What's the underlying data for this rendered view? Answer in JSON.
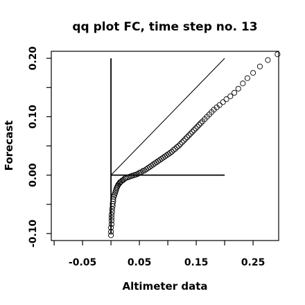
{
  "chart_data": {
    "type": "scatter",
    "title": "qq plot FC, time step no. 13",
    "xlabel": "Altimeter data",
    "ylabel": "Forecast",
    "xlim": [
      -0.105,
      0.295
    ],
    "ylim": [
      -0.112,
      0.212
    ],
    "x_ticks": [
      -0.05,
      0.05,
      0.15,
      0.25
    ],
    "x_tick_labels": [
      "-0.05",
      "0.05",
      "0.15",
      "0.25"
    ],
    "x_minor_ticks": [
      -0.1,
      0.0,
      0.1,
      0.2
    ],
    "y_ticks": [
      -0.1,
      0.0,
      0.1,
      0.2
    ],
    "y_tick_labels": [
      "-0.10",
      "0.00",
      "0.10",
      "0.20"
    ],
    "y_minor_ticks": [
      -0.05,
      0.05,
      0.15
    ],
    "reference_lines": [
      {
        "x": [
          0.0,
          0.2
        ],
        "y": [
          0.0,
          0.2
        ]
      },
      {
        "x": [
          0.0,
          0.0
        ],
        "y": [
          -0.1,
          0.2
        ]
      },
      {
        "x": [
          0.0,
          0.2
        ],
        "y": [
          0.0,
          0.0
        ]
      }
    ],
    "marker": "open-circle",
    "point_color": "#000000",
    "grid": false,
    "series": [
      {
        "points": [
          [
            0.0,
            -0.103
          ],
          [
            0.0,
            -0.097
          ],
          [
            0.0,
            -0.09
          ],
          [
            0.001,
            -0.084
          ],
          [
            0.001,
            -0.078
          ],
          [
            0.001,
            -0.073
          ],
          [
            0.001,
            -0.068
          ],
          [
            0.002,
            -0.063
          ],
          [
            0.002,
            -0.058
          ],
          [
            0.003,
            -0.053
          ],
          [
            0.003,
            -0.049
          ],
          [
            0.004,
            -0.045
          ],
          [
            0.004,
            -0.041
          ],
          [
            0.005,
            -0.037
          ],
          [
            0.006,
            -0.034
          ],
          [
            0.007,
            -0.031
          ],
          [
            0.008,
            -0.028
          ],
          [
            0.009,
            -0.025
          ],
          [
            0.01,
            -0.022
          ],
          [
            0.011,
            -0.02
          ],
          [
            0.012,
            -0.018
          ],
          [
            0.013,
            -0.016
          ],
          [
            0.015,
            -0.014
          ],
          [
            0.016,
            -0.012
          ],
          [
            0.018,
            -0.011
          ],
          [
            0.02,
            -0.009
          ],
          [
            0.022,
            -0.008
          ],
          [
            0.024,
            -0.006
          ],
          [
            0.026,
            -0.005
          ],
          [
            0.029,
            -0.004
          ],
          [
            0.032,
            -0.003
          ],
          [
            0.035,
            -0.002
          ],
          [
            0.038,
            -0.001
          ],
          [
            0.041,
            0.0
          ],
          [
            0.044,
            0.001
          ],
          [
            0.047,
            0.002
          ],
          [
            0.05,
            0.004
          ],
          [
            0.053,
            0.005
          ],
          [
            0.056,
            0.007
          ],
          [
            0.059,
            0.008
          ],
          [
            0.062,
            0.01
          ],
          [
            0.065,
            0.012
          ],
          [
            0.068,
            0.014
          ],
          [
            0.071,
            0.016
          ],
          [
            0.074,
            0.018
          ],
          [
            0.077,
            0.02
          ],
          [
            0.08,
            0.022
          ],
          [
            0.083,
            0.024
          ],
          [
            0.086,
            0.026
          ],
          [
            0.089,
            0.028
          ],
          [
            0.092,
            0.03
          ],
          [
            0.095,
            0.032
          ],
          [
            0.098,
            0.034
          ],
          [
            0.101,
            0.036
          ],
          [
            0.104,
            0.038
          ],
          [
            0.107,
            0.04
          ],
          [
            0.11,
            0.043
          ],
          [
            0.113,
            0.045
          ],
          [
            0.116,
            0.048
          ],
          [
            0.119,
            0.05
          ],
          [
            0.122,
            0.053
          ],
          [
            0.125,
            0.056
          ],
          [
            0.128,
            0.059
          ],
          [
            0.131,
            0.062
          ],
          [
            0.134,
            0.065
          ],
          [
            0.137,
            0.068
          ],
          [
            0.14,
            0.071
          ],
          [
            0.143,
            0.074
          ],
          [
            0.146,
            0.077
          ],
          [
            0.149,
            0.08
          ],
          [
            0.152,
            0.083
          ],
          [
            0.155,
            0.086
          ],
          [
            0.158,
            0.089
          ],
          [
            0.161,
            0.092
          ],
          [
            0.165,
            0.096
          ],
          [
            0.169,
            0.1
          ],
          [
            0.173,
            0.104
          ],
          [
            0.177,
            0.108
          ],
          [
            0.181,
            0.112
          ],
          [
            0.186,
            0.116
          ],
          [
            0.191,
            0.12
          ],
          [
            0.197,
            0.125
          ],
          [
            0.203,
            0.13
          ],
          [
            0.21,
            0.135
          ],
          [
            0.217,
            0.141
          ],
          [
            0.224,
            0.148
          ],
          [
            0.232,
            0.157
          ],
          [
            0.24,
            0.166
          ],
          [
            0.25,
            0.175
          ],
          [
            0.262,
            0.186
          ],
          [
            0.276,
            0.197
          ],
          [
            0.293,
            0.207
          ]
        ]
      }
    ]
  }
}
